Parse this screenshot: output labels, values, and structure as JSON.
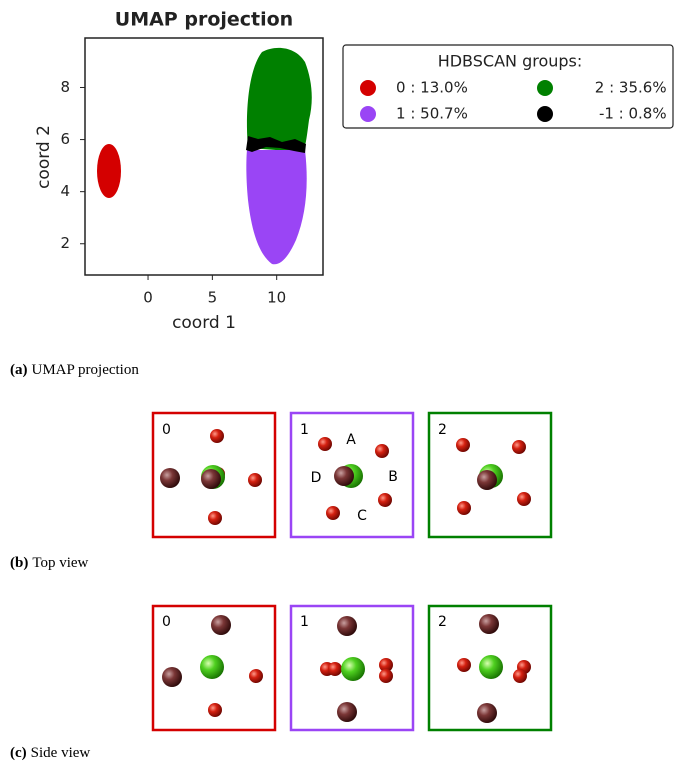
{
  "chart_data": {
    "type": "scatter",
    "title": "UMAP projection",
    "x_label": "coord 1",
    "y_label": "coord 2",
    "xlim": [
      -4.9,
      13.6
    ],
    "ylim": [
      0.8,
      9.9
    ],
    "xticks": [
      0,
      5,
      10
    ],
    "yticks": [
      2,
      4,
      6,
      8
    ],
    "legend_title": "HDBSCAN groups:",
    "series": [
      {
        "name": "0 : 13.0%",
        "color": "#d40000"
      },
      {
        "name": "2 : 35.6%",
        "color": "#008000"
      },
      {
        "name": "1 : 50.7%",
        "color": "#9a45f5"
      },
      {
        "name": "-1 :  0.8%",
        "color": "#000000"
      }
    ]
  },
  "captions": [
    {
      "tag": "(a)",
      "text": "UMAP projection"
    },
    {
      "tag": "(b)",
      "text": "Top view"
    },
    {
      "tag": "(c)",
      "text": "Side view"
    }
  ],
  "top_view": {
    "panels": [
      "0",
      "1",
      "2"
    ],
    "site_labels": [
      "A",
      "B",
      "C",
      "D"
    ]
  },
  "side_view": {
    "panels": [
      "0",
      "1",
      "2"
    ]
  }
}
